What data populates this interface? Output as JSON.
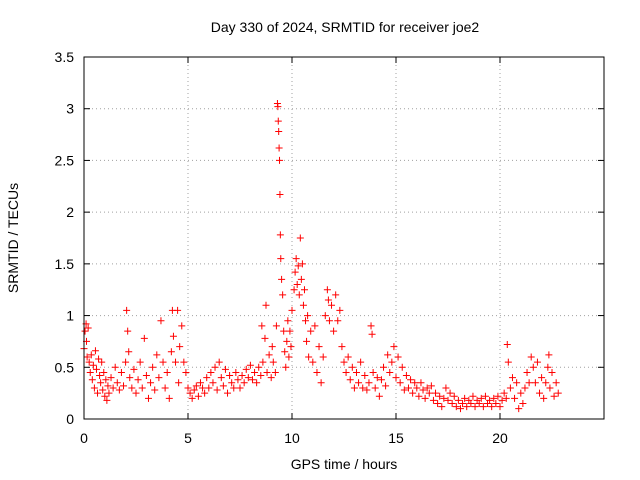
{
  "chart_data": {
    "type": "scatter",
    "title": "Day 330 of 2024, SRMTID for receiver joe2",
    "xlabel": "GPS time / hours",
    "ylabel": "SRMTID / TECUs",
    "xlim": [
      0,
      25
    ],
    "ylim": [
      0,
      3.5
    ],
    "grid": true,
    "x_ticks": [
      0,
      5,
      10,
      15,
      20
    ],
    "x_tick_labels": [
      "0",
      "5",
      "10",
      "15",
      "20"
    ],
    "y_ticks": [
      0,
      0.5,
      1,
      1.5,
      2,
      2.5,
      3,
      3.5
    ],
    "y_tick_labels": [
      "0",
      "0.5",
      "1",
      "1.5",
      "2",
      "2.5",
      "3",
      "3.5"
    ],
    "marker": "+",
    "color": "#ff0000",
    "series": [
      {
        "name": "SRMTID",
        "points": [
          [
            0.0,
            0.68
          ],
          [
            0.05,
            0.85
          ],
          [
            0.1,
            0.92
          ],
          [
            0.12,
            0.75
          ],
          [
            0.15,
            0.6
          ],
          [
            0.2,
            0.88
          ],
          [
            0.25,
            0.55
          ],
          [
            0.3,
            0.45
          ],
          [
            0.35,
            0.62
          ],
          [
            0.4,
            0.38
          ],
          [
            0.45,
            0.52
          ],
          [
            0.5,
            0.3
          ],
          [
            0.55,
            0.66
          ],
          [
            0.6,
            0.48
          ],
          [
            0.65,
            0.25
          ],
          [
            0.7,
            0.58
          ],
          [
            0.75,
            0.42
          ],
          [
            0.8,
            0.35
          ],
          [
            0.85,
            0.55
          ],
          [
            0.9,
            0.28
          ],
          [
            0.95,
            0.45
          ],
          [
            1.0,
            0.22
          ],
          [
            1.05,
            0.38
          ],
          [
            1.1,
            0.18
          ],
          [
            1.15,
            0.32
          ],
          [
            1.2,
            0.25
          ],
          [
            1.3,
            0.4
          ],
          [
            1.4,
            0.3
          ],
          [
            1.5,
            0.5
          ],
          [
            1.6,
            0.35
          ],
          [
            1.7,
            0.28
          ],
          [
            1.8,
            0.45
          ],
          [
            1.9,
            0.32
          ],
          [
            2.0,
            0.55
          ],
          [
            2.05,
            1.05
          ],
          [
            2.1,
            0.85
          ],
          [
            2.15,
            0.65
          ],
          [
            2.2,
            0.4
          ],
          [
            2.3,
            0.3
          ],
          [
            2.4,
            0.48
          ],
          [
            2.5,
            0.25
          ],
          [
            2.6,
            0.38
          ],
          [
            2.7,
            0.55
          ],
          [
            2.8,
            0.3
          ],
          [
            2.9,
            0.78
          ],
          [
            3.0,
            0.42
          ],
          [
            3.1,
            0.2
          ],
          [
            3.2,
            0.35
          ],
          [
            3.3,
            0.5
          ],
          [
            3.4,
            0.28
          ],
          [
            3.5,
            0.62
          ],
          [
            3.6,
            0.4
          ],
          [
            3.7,
            0.95
          ],
          [
            3.8,
            0.55
          ],
          [
            3.9,
            0.3
          ],
          [
            4.0,
            0.45
          ],
          [
            4.1,
            0.2
          ],
          [
            4.2,
            0.65
          ],
          [
            4.25,
            1.05
          ],
          [
            4.3,
            0.8
          ],
          [
            4.4,
            0.55
          ],
          [
            4.5,
            1.05
          ],
          [
            4.55,
            0.35
          ],
          [
            4.6,
            0.7
          ],
          [
            4.7,
            0.9
          ],
          [
            4.8,
            0.55
          ],
          [
            4.9,
            0.45
          ],
          [
            5.0,
            0.3
          ],
          [
            5.1,
            0.25
          ],
          [
            5.2,
            0.2
          ],
          [
            5.3,
            0.28
          ],
          [
            5.4,
            0.32
          ],
          [
            5.5,
            0.22
          ],
          [
            5.6,
            0.35
          ],
          [
            5.7,
            0.3
          ],
          [
            5.8,
            0.25
          ],
          [
            5.9,
            0.4
          ],
          [
            6.0,
            0.3
          ],
          [
            6.1,
            0.45
          ],
          [
            6.2,
            0.35
          ],
          [
            6.3,
            0.5
          ],
          [
            6.4,
            0.28
          ],
          [
            6.5,
            0.55
          ],
          [
            6.6,
            0.4
          ],
          [
            6.7,
            0.32
          ],
          [
            6.8,
            0.48
          ],
          [
            6.9,
            0.25
          ],
          [
            7.0,
            0.42
          ],
          [
            7.1,
            0.35
          ],
          [
            7.2,
            0.3
          ],
          [
            7.3,
            0.45
          ],
          [
            7.4,
            0.38
          ],
          [
            7.5,
            0.3
          ],
          [
            7.6,
            0.42
          ],
          [
            7.7,
            0.35
          ],
          [
            7.8,
            0.48
          ],
          [
            7.9,
            0.4
          ],
          [
            8.0,
            0.52
          ],
          [
            8.1,
            0.38
          ],
          [
            8.2,
            0.45
          ],
          [
            8.3,
            0.35
          ],
          [
            8.4,
            0.5
          ],
          [
            8.5,
            0.42
          ],
          [
            8.55,
            0.9
          ],
          [
            8.6,
            0.55
          ],
          [
            8.7,
            0.78
          ],
          [
            8.75,
            1.1
          ],
          [
            8.8,
            0.45
          ],
          [
            8.9,
            0.62
          ],
          [
            9.0,
            0.4
          ],
          [
            9.05,
            0.7
          ],
          [
            9.1,
            0.55
          ],
          [
            9.2,
            0.45
          ],
          [
            9.25,
            0.9
          ],
          [
            9.3,
            3.05
          ],
          [
            9.32,
            3.02
          ],
          [
            9.34,
            2.88
          ],
          [
            9.36,
            2.78
          ],
          [
            9.38,
            2.62
          ],
          [
            9.4,
            2.5
          ],
          [
            9.42,
            2.17
          ],
          [
            9.44,
            1.78
          ],
          [
            9.46,
            1.55
          ],
          [
            9.5,
            1.35
          ],
          [
            9.55,
            1.2
          ],
          [
            9.6,
            0.85
          ],
          [
            9.65,
            0.65
          ],
          [
            9.7,
            0.5
          ],
          [
            9.75,
            0.75
          ],
          [
            9.8,
            0.95
          ],
          [
            9.85,
            0.6
          ],
          [
            9.9,
            0.85
          ],
          [
            9.95,
            0.7
          ],
          [
            10.0,
            1.05
          ],
          [
            10.1,
            1.25
          ],
          [
            10.15,
            1.42
          ],
          [
            10.2,
            1.55
          ],
          [
            10.25,
            1.3
          ],
          [
            10.3,
            1.48
          ],
          [
            10.35,
            1.2
          ],
          [
            10.4,
            1.75
          ],
          [
            10.45,
            1.35
          ],
          [
            10.5,
            1.5
          ],
          [
            10.55,
            1.1
          ],
          [
            10.6,
            1.25
          ],
          [
            10.65,
            0.95
          ],
          [
            10.7,
            0.75
          ],
          [
            10.75,
            1.0
          ],
          [
            10.8,
            0.6
          ],
          [
            10.9,
            0.85
          ],
          [
            11.0,
            0.55
          ],
          [
            11.1,
            0.9
          ],
          [
            11.2,
            0.45
          ],
          [
            11.3,
            0.7
          ],
          [
            11.4,
            0.35
          ],
          [
            11.5,
            0.6
          ],
          [
            11.6,
            1.0
          ],
          [
            11.7,
            1.25
          ],
          [
            11.75,
            1.15
          ],
          [
            11.8,
            0.95
          ],
          [
            11.9,
            1.1
          ],
          [
            12.0,
            0.85
          ],
          [
            12.1,
            1.2
          ],
          [
            12.2,
            0.95
          ],
          [
            12.3,
            1.05
          ],
          [
            12.4,
            0.7
          ],
          [
            12.5,
            0.55
          ],
          [
            12.6,
            0.45
          ],
          [
            12.7,
            0.6
          ],
          [
            12.8,
            0.38
          ],
          [
            12.9,
            0.5
          ],
          [
            13.0,
            0.3
          ],
          [
            13.1,
            0.45
          ],
          [
            13.2,
            0.35
          ],
          [
            13.3,
            0.55
          ],
          [
            13.4,
            0.3
          ],
          [
            13.5,
            0.42
          ],
          [
            13.6,
            0.28
          ],
          [
            13.7,
            0.35
          ],
          [
            13.8,
            0.9
          ],
          [
            13.85,
            0.82
          ],
          [
            13.9,
            0.45
          ],
          [
            14.0,
            0.3
          ],
          [
            14.1,
            0.4
          ],
          [
            14.2,
            0.22
          ],
          [
            14.3,
            0.38
          ],
          [
            14.4,
            0.5
          ],
          [
            14.5,
            0.32
          ],
          [
            14.6,
            0.62
          ],
          [
            14.7,
            0.45
          ],
          [
            14.8,
            0.55
          ],
          [
            14.9,
            0.7
          ],
          [
            15.0,
            0.4
          ],
          [
            15.1,
            0.6
          ],
          [
            15.2,
            0.35
          ],
          [
            15.3,
            0.5
          ],
          [
            15.4,
            0.28
          ],
          [
            15.5,
            0.42
          ],
          [
            15.6,
            0.3
          ],
          [
            15.7,
            0.38
          ],
          [
            15.8,
            0.25
          ],
          [
            15.9,
            0.35
          ],
          [
            16.0,
            0.3
          ],
          [
            16.1,
            0.22
          ],
          [
            16.2,
            0.35
          ],
          [
            16.3,
            0.28
          ],
          [
            16.4,
            0.2
          ],
          [
            16.5,
            0.3
          ],
          [
            16.6,
            0.25
          ],
          [
            16.7,
            0.32
          ],
          [
            16.8,
            0.18
          ],
          [
            16.9,
            0.25
          ],
          [
            17.0,
            0.15
          ],
          [
            17.1,
            0.22
          ],
          [
            17.2,
            0.12
          ],
          [
            17.3,
            0.2
          ],
          [
            17.4,
            0.3
          ],
          [
            17.5,
            0.18
          ],
          [
            17.6,
            0.25
          ],
          [
            17.7,
            0.15
          ],
          [
            17.8,
            0.22
          ],
          [
            17.9,
            0.12
          ],
          [
            18.0,
            0.18
          ],
          [
            18.1,
            0.1
          ],
          [
            18.2,
            0.15
          ],
          [
            18.3,
            0.2
          ],
          [
            18.4,
            0.12
          ],
          [
            18.5,
            0.18
          ],
          [
            18.6,
            0.15
          ],
          [
            18.7,
            0.22
          ],
          [
            18.8,
            0.12
          ],
          [
            18.9,
            0.18
          ],
          [
            19.0,
            0.15
          ],
          [
            19.1,
            0.2
          ],
          [
            19.2,
            0.12
          ],
          [
            19.3,
            0.22
          ],
          [
            19.4,
            0.15
          ],
          [
            19.5,
            0.18
          ],
          [
            19.6,
            0.12
          ],
          [
            19.7,
            0.2
          ],
          [
            19.8,
            0.15
          ],
          [
            19.9,
            0.22
          ],
          [
            20.0,
            0.12
          ],
          [
            20.1,
            0.18
          ],
          [
            20.2,
            0.25
          ],
          [
            20.3,
            0.2
          ],
          [
            20.35,
            0.72
          ],
          [
            20.4,
            0.55
          ],
          [
            20.5,
            0.3
          ],
          [
            20.6,
            0.4
          ],
          [
            20.7,
            0.2
          ],
          [
            20.8,
            0.35
          ],
          [
            20.9,
            0.1
          ],
          [
            21.0,
            0.25
          ],
          [
            21.1,
            0.15
          ],
          [
            21.2,
            0.3
          ],
          [
            21.3,
            0.45
          ],
          [
            21.4,
            0.35
          ],
          [
            21.5,
            0.6
          ],
          [
            21.6,
            0.5
          ],
          [
            21.7,
            0.35
          ],
          [
            21.8,
            0.55
          ],
          [
            21.9,
            0.25
          ],
          [
            22.0,
            0.4
          ],
          [
            22.1,
            0.2
          ],
          [
            22.2,
            0.35
          ],
          [
            22.3,
            0.5
          ],
          [
            22.35,
            0.62
          ],
          [
            22.4,
            0.3
          ],
          [
            22.5,
            0.45
          ],
          [
            22.6,
            0.22
          ],
          [
            22.7,
            0.35
          ],
          [
            22.8,
            0.25
          ]
        ]
      }
    ]
  }
}
